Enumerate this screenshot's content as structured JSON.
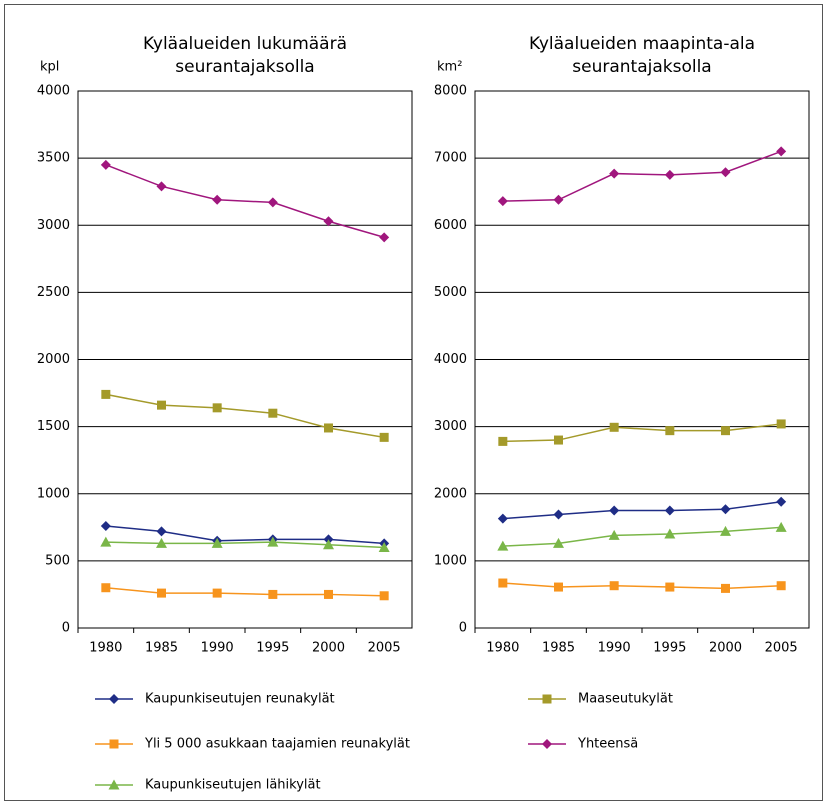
{
  "chart_data": [
    {
      "type": "line",
      "title": "Kyläalueiden lukumäärä\nseurantajaksolla",
      "y_label": "kpl",
      "categories": [
        "1980",
        "1985",
        "1990",
        "1995",
        "2000",
        "2005"
      ],
      "ylim": [
        0,
        4000
      ],
      "yticks": [
        0,
        500,
        1000,
        1500,
        2000,
        2500,
        3000,
        3500,
        4000
      ],
      "grid": true,
      "series": [
        {
          "name": "Kaupunkiseutujen reunakylät",
          "color": "#1f2d86",
          "marker": "diamond",
          "values": [
            760,
            720,
            650,
            660,
            660,
            630
          ]
        },
        {
          "name": "Yli 5 000 asukkaan taajamien reunakylät",
          "color": "#f7941d",
          "marker": "square",
          "values": [
            300,
            260,
            260,
            250,
            250,
            240
          ]
        },
        {
          "name": "Kaupunkiseutujen lähikylät",
          "color": "#7ab648",
          "marker": "triangle",
          "values": [
            640,
            630,
            630,
            640,
            620,
            600
          ]
        },
        {
          "name": "Maaseutukylät",
          "color": "#a49a2a",
          "marker": "square",
          "values": [
            1740,
            1660,
            1640,
            1600,
            1490,
            1420
          ]
        },
        {
          "name": "Yhteensä",
          "color": "#a0167d",
          "marker": "diamond",
          "values": [
            3450,
            3290,
            3190,
            3170,
            3030,
            2910
          ]
        }
      ]
    },
    {
      "type": "line",
      "title": "Kyläalueiden maapinta-ala\nseurantajaksolla",
      "y_label": "km²",
      "categories": [
        "1980",
        "1985",
        "1990",
        "1995",
        "2000",
        "2005"
      ],
      "ylim": [
        0,
        8000
      ],
      "yticks": [
        0,
        1000,
        2000,
        3000,
        4000,
        5000,
        6000,
        7000,
        8000
      ],
      "grid": true,
      "series": [
        {
          "name": "Kaupunkiseutujen reunakylät",
          "color": "#1f2d86",
          "marker": "diamond",
          "values": [
            1630,
            1690,
            1750,
            1750,
            1770,
            1880
          ]
        },
        {
          "name": "Yli 5 000 asukkaan taajamien reunakylät",
          "color": "#f7941d",
          "marker": "square",
          "values": [
            670,
            610,
            630,
            610,
            590,
            630
          ]
        },
        {
          "name": "Kaupunkiseutujen lähikylät",
          "color": "#7ab648",
          "marker": "triangle",
          "values": [
            1220,
            1260,
            1380,
            1400,
            1440,
            1500
          ]
        },
        {
          "name": "Maaseutukylät",
          "color": "#a49a2a",
          "marker": "square",
          "values": [
            2780,
            2800,
            2990,
            2940,
            2940,
            3040
          ]
        },
        {
          "name": "Yhteensä",
          "color": "#a0167d",
          "marker": "diamond",
          "values": [
            6360,
            6380,
            6770,
            6750,
            6790,
            7100
          ]
        }
      ]
    }
  ]
}
